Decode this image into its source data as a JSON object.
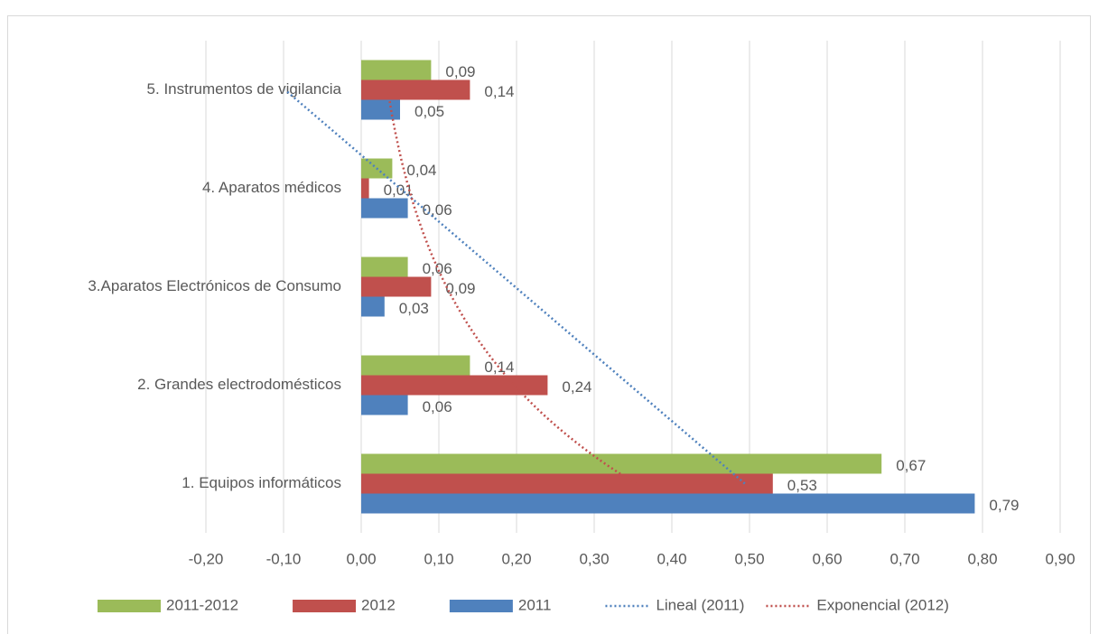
{
  "chart_data": {
    "type": "hbar",
    "categories": [
      "1. Equipos informáticos",
      "2. Grandes electrodomésticos",
      "3.Aparatos Electrónicos de Consumo",
      "4. Aparatos médicos",
      "5. Instrumentos de vigilancia"
    ],
    "series": [
      {
        "name": "2011-2012",
        "color": "#9bbb59",
        "values": [
          0.67,
          0.14,
          0.06,
          0.04,
          0.09
        ],
        "value_labels": [
          "0,67",
          "0,14",
          "0,06",
          "0,04",
          "0,09"
        ]
      },
      {
        "name": "2012",
        "color": "#c0504d",
        "values": [
          0.53,
          0.24,
          0.09,
          0.01,
          0.14
        ],
        "value_labels": [
          "0,53",
          "0,24",
          "0,09",
          "0,01",
          "0,14"
        ]
      },
      {
        "name": "2011",
        "color": "#4f81bd",
        "values": [
          0.79,
          0.06,
          0.03,
          0.06,
          0.05
        ],
        "value_labels": [
          "0,79",
          "0,06",
          "0,03",
          "0,06",
          "0,05"
        ]
      }
    ],
    "trendlines": [
      {
        "name": "Lineal (2011)",
        "kind": "linear",
        "series": "2011",
        "color": "#4f81bd"
      },
      {
        "name": "Exponencial (2012)",
        "kind": "exponential",
        "series": "2012",
        "color": "#c0504d"
      }
    ],
    "xlim": [
      -0.2,
      0.9
    ],
    "xticks": [
      {
        "value": -0.2,
        "label": "-0,20"
      },
      {
        "value": -0.1,
        "label": "-0,10"
      },
      {
        "value": 0,
        "label": "0,00"
      },
      {
        "value": 0.1,
        "label": "0,10"
      },
      {
        "value": 0.2,
        "label": "0,20"
      },
      {
        "value": 0.3,
        "label": "0,30"
      },
      {
        "value": 0.4,
        "label": "0,40"
      },
      {
        "value": 0.5,
        "label": "0,50"
      },
      {
        "value": 0.6,
        "label": "0,60"
      },
      {
        "value": 0.7,
        "label": "0,70"
      },
      {
        "value": 0.8,
        "label": "0,80"
      },
      {
        "value": 0.9,
        "label": "0,90"
      }
    ],
    "grid": true,
    "legend": "bottom"
  }
}
